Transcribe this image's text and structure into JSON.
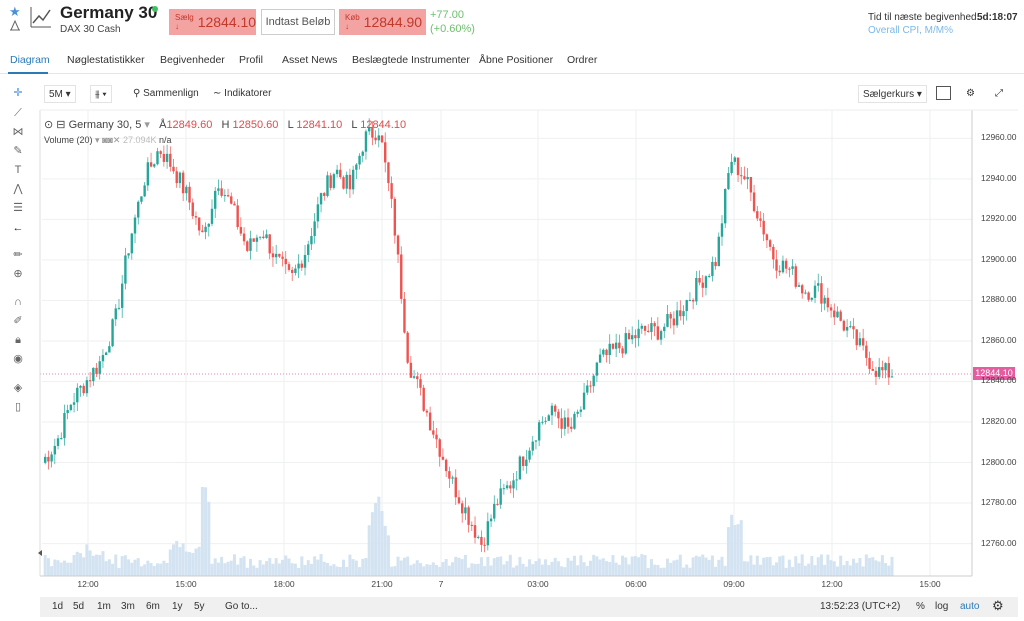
{
  "header": {
    "title": "Germany 30",
    "subtitle": "DAX 30 Cash",
    "sell_label": "Sælg ↓",
    "sell_price": "12844.10",
    "amount_placeholder": "Indtast Beløb",
    "buy_label": "Køb ↓",
    "buy_price": "12844.90",
    "change_abs": "+77.00",
    "change_pct": "(+0.60%)",
    "next_event_label": "Tid til næste begivenhed:",
    "next_event_time": "5d:18:07",
    "next_event_name": "Overall CPI, M/M%"
  },
  "tabs": [
    "Diagram",
    "Nøglestatistikker",
    "Begivenheder",
    "Profil",
    "Asset News",
    "Beslægtede Instrumenter",
    "Åbne Positioner",
    "Ordrer"
  ],
  "toolbar": {
    "interval": "5M",
    "compare": "Sammenlign",
    "indicators": "Indikatorer",
    "price_type": "Sælgerkurs"
  },
  "legend": {
    "symbol": "Germany 30, 5",
    "open_label": "Å",
    "open": "12849.60",
    "high_label": "H",
    "high": "12850.60",
    "low_label": "L",
    "low": "12841.10",
    "close_label": "L",
    "close": "12844.10",
    "volume_label": "Volume (20)",
    "volume_value": "27.094K",
    "volume_na": "n/a"
  },
  "price_tag": "12844.10",
  "bottom": {
    "ranges": [
      "1d",
      "5d",
      "1m",
      "3m",
      "6m",
      "1y",
      "5y"
    ],
    "goto": "Go to...",
    "clock": "13:52:23 (UTC+2)",
    "percent": "%",
    "log": "log",
    "auto": "auto"
  },
  "colors": {
    "up": "#26a69a",
    "down": "#ef5350",
    "accent": "#2a7ab8",
    "price_tag": "#e35da0"
  },
  "chart_data": {
    "type": "candlestick",
    "y_ticks": [
      12760,
      12780,
      12800,
      12820,
      12840,
      12860,
      12880,
      12900,
      12920,
      12940,
      12960
    ],
    "y_tick_labels": [
      "12760.00",
      "12780.00",
      "12800.00",
      "12820.00",
      "12840.00",
      "12860.00",
      "12880.00",
      "12900.00",
      "12920.00",
      "12940.00",
      "12960.00"
    ],
    "ylim": [
      12744,
      12974
    ],
    "x_tick_labels": [
      "12:00",
      "15:00",
      "18:00",
      "21:00",
      "7",
      "03:00",
      "06:00",
      "09:00",
      "12:00",
      "15:00"
    ],
    "last_price": 12844.1,
    "close_path": [
      12800,
      12810,
      12830,
      12840,
      12850,
      12870,
      12910,
      12940,
      12955,
      12945,
      12930,
      12910,
      12940,
      12925,
      12905,
      12915,
      12900,
      12890,
      12905,
      12930,
      12945,
      12935,
      12960,
      12965,
      12920,
      12850,
      12830,
      12810,
      12790,
      12775,
      12760,
      12780,
      12790,
      12805,
      12820,
      12825,
      12815,
      12830,
      12850,
      12855,
      12860,
      12865,
      12865,
      12870,
      12880,
      12890,
      12900,
      12950,
      12940,
      12920,
      12900,
      12895,
      12885,
      12885,
      12875,
      12865,
      12855,
      12845,
      12844
    ]
  }
}
